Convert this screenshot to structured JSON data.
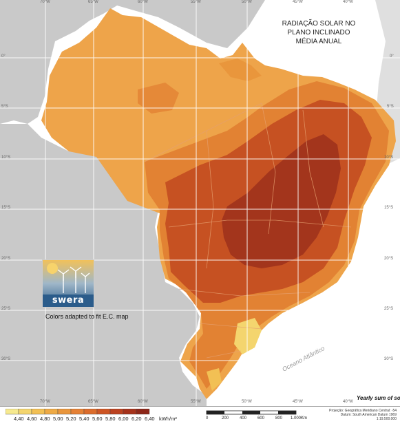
{
  "title": {
    "line1": "RADIAÇÃO SOLAR NO",
    "line2": "PLANO INCLINADO",
    "line3": "MÉDIA ANUAL"
  },
  "longitude_labels": [
    "70°W",
    "65°W",
    "60°W",
    "55°W",
    "50°W",
    "45°W",
    "40°W"
  ],
  "latitude_labels": [
    "0°",
    "5°S",
    "10°S",
    "15°S",
    "20°S",
    "25°S",
    "30°S"
  ],
  "ocean_label": "Oceano Atlântico",
  "logo": {
    "name": "swera"
  },
  "note": "Colors adapted to fit  E.C. map",
  "yearly_label": "Yearly sum of so",
  "legend": {
    "values": [
      "4,40",
      "4,60",
      "4,80",
      "5,00",
      "5,20",
      "5,40",
      "5,60",
      "5,80",
      "6,00",
      "6,20",
      "6,40"
    ],
    "unit": "kWh/m²",
    "colors": [
      "#f6e98f",
      "#f4d56e",
      "#f2c054",
      "#eeaa45",
      "#e9963c",
      "#e58135",
      "#db6c2c",
      "#cd5524",
      "#bb4220",
      "#a5321b",
      "#8c2618"
    ]
  },
  "scale": {
    "ticks": [
      "0",
      "200",
      "400",
      "600",
      "800",
      "1.000"
    ],
    "unit": "Km"
  },
  "projection": {
    "line1": "Projeção: Geográfica    Meridiano Central: -54",
    "line2": "Datum: South American Datum 1969",
    "line3": "1:19.500.000"
  },
  "colors": {
    "ocean": "#ffffff",
    "land_outside": "#c9c9c9",
    "grid": "#ffffff",
    "light_orange": "#eea44a",
    "mid_orange": "#e28233",
    "dark_orange": "#c65122",
    "darkest": "#a3351c"
  }
}
